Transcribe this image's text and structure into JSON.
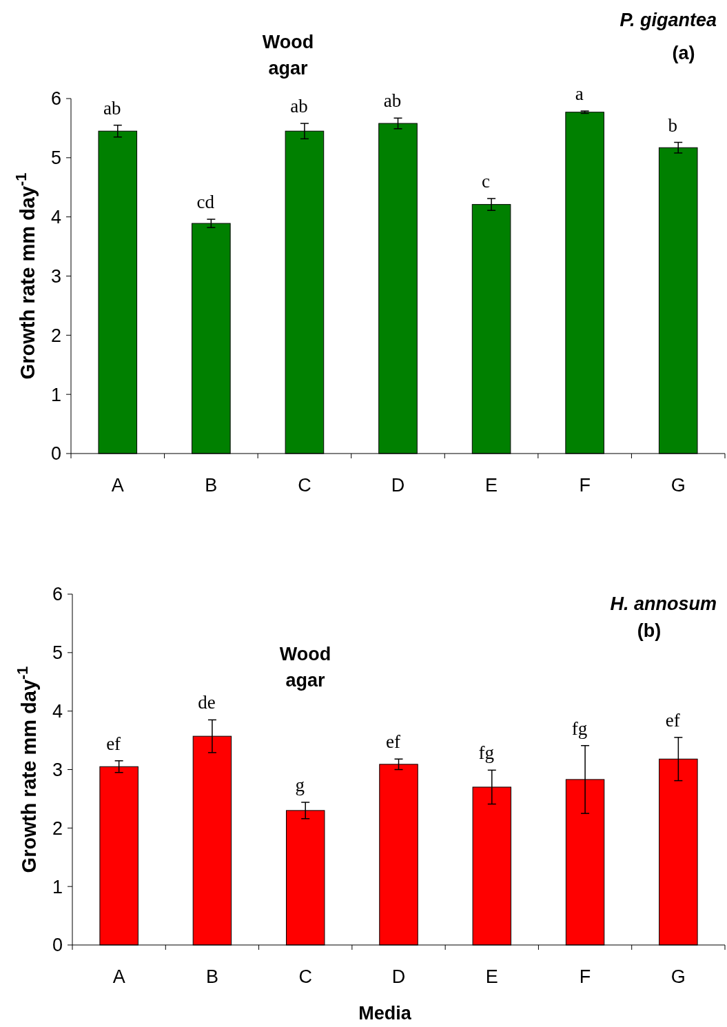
{
  "chart_data": [
    {
      "type": "bar",
      "title": "P. gigantea",
      "subtitle": "(a)",
      "ylabel": "Growth rate mm day$^{-1}$",
      "categories": [
        "A",
        "B",
        "C",
        "D",
        "E",
        "F",
        "G"
      ],
      "values": [
        5.45,
        3.89,
        5.45,
        5.58,
        4.21,
        5.77,
        5.17
      ],
      "errors": [
        0.1,
        0.07,
        0.13,
        0.09,
        0.1,
        0.02,
        0.09
      ],
      "color": "#008000",
      "ylim": [
        0,
        6
      ],
      "yticks": [
        0,
        1,
        2,
        3,
        4,
        5,
        6
      ],
      "annotations": [
        "Wood agar",
        {
          "text": "ab",
          "x": "A",
          "y": 5.55
        },
        {
          "text": "cd",
          "x": "B",
          "y": 3.96
        },
        {
          "text": "ab",
          "x": "C",
          "y": 5.58
        },
        {
          "text": "ab",
          "x": "D",
          "y": 5.67
        },
        {
          "text": "c",
          "x": "E",
          "y": 4.31
        },
        {
          "text": "a",
          "x": "F",
          "y": 5.79
        },
        {
          "text": "b",
          "x": "G",
          "y": 5.26
        }
      ]
    },
    {
      "type": "bar",
      "title": "H. annosum",
      "subtitle": "(b)",
      "xlabel": "Media",
      "ylabel": "Growth rate mm day$^{-1}$",
      "categories": [
        "A",
        "B",
        "C",
        "D",
        "E",
        "F",
        "G"
      ],
      "values": [
        3.05,
        3.57,
        2.3,
        3.09,
        2.7,
        2.83,
        3.18
      ],
      "errors": [
        0.1,
        0.28,
        0.14,
        0.09,
        0.29,
        0.58,
        0.37
      ],
      "color": "#ff0000",
      "ylim": [
        0,
        6
      ],
      "yticks": [
        0,
        1,
        2,
        3,
        4,
        5,
        6
      ],
      "annotations": [
        "Wood agar",
        {
          "text": "ef",
          "x": "A",
          "y": 3.15
        },
        {
          "text": "de",
          "x": "B",
          "y": 3.85
        },
        {
          "text": "g",
          "x": "C",
          "y": 2.44
        },
        {
          "text": "ef",
          "x": "D",
          "y": 3.18
        },
        {
          "text": "fg",
          "x": "E",
          "y": 2.99
        },
        {
          "text": "fg",
          "x": "F",
          "y": 3.41
        },
        {
          "text": "ef",
          "x": "G",
          "y": 3.55
        }
      ]
    }
  ]
}
